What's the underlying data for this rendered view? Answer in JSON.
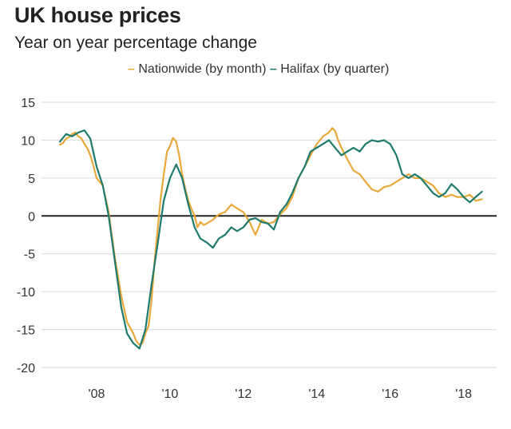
{
  "chart_data": {
    "type": "line",
    "title": "UK house prices",
    "subtitle": "Year on year percentage change",
    "legend": [
      {
        "name": "Nationwide (by month)",
        "color": "#e8a93a"
      },
      {
        "name": "Halifax (by quarter)",
        "color": "#1f7a6e"
      }
    ],
    "ylim": [
      -20,
      15
    ],
    "yticks": [
      15,
      10,
      5,
      0,
      -5,
      -10,
      -15,
      -20
    ],
    "xlim": [
      2006.5,
      2018.9
    ],
    "xticks": [
      {
        "value": 2008,
        "label": "'08"
      },
      {
        "value": 2010,
        "label": "'10"
      },
      {
        "value": 2012,
        "label": "'12"
      },
      {
        "value": 2014,
        "label": "'14"
      },
      {
        "value": 2016,
        "label": "'16"
      },
      {
        "value": 2018,
        "label": "'18"
      }
    ],
    "grid": true,
    "series": [
      {
        "name": "Nationwide (by month)",
        "color": "#e8a93a",
        "x": [
          2007.0,
          2007.08,
          2007.17,
          2007.25,
          2007.33,
          2007.42,
          2007.5,
          2007.58,
          2007.67,
          2007.75,
          2007.83,
          2007.92,
          2008.0,
          2008.17,
          2008.33,
          2008.5,
          2008.67,
          2008.83,
          2009.0,
          2009.08,
          2009.17,
          2009.25,
          2009.33,
          2009.42,
          2009.5,
          2009.58,
          2009.67,
          2009.75,
          2009.83,
          2009.92,
          2010.0,
          2010.08,
          2010.17,
          2010.25,
          2010.33,
          2010.42,
          2010.5,
          2010.58,
          2010.67,
          2010.75,
          2010.83,
          2010.92,
          2011.0,
          2011.17,
          2011.33,
          2011.5,
          2011.67,
          2011.83,
          2012.0,
          2012.17,
          2012.33,
          2012.5,
          2012.67,
          2012.83,
          2013.0,
          2013.17,
          2013.33,
          2013.5,
          2013.67,
          2013.83,
          2014.0,
          2014.17,
          2014.33,
          2014.42,
          2014.5,
          2014.58,
          2014.67,
          2014.83,
          2015.0,
          2015.17,
          2015.33,
          2015.5,
          2015.67,
          2015.83,
          2016.0,
          2016.17,
          2016.33,
          2016.5,
          2016.67,
          2016.83,
          2017.0,
          2017.17,
          2017.33,
          2017.5,
          2017.67,
          2017.83,
          2018.0,
          2018.17,
          2018.33,
          2018.5
        ],
        "values": [
          9.4,
          9.6,
          10.2,
          10.4,
          10.8,
          11.0,
          10.5,
          10.3,
          9.5,
          8.9,
          8.0,
          6.5,
          5.0,
          4.0,
          0.5,
          -5.5,
          -10.5,
          -14.0,
          -15.5,
          -16.5,
          -17.0,
          -16.8,
          -15.5,
          -14.5,
          -11.0,
          -6.0,
          -1.5,
          2.5,
          5.5,
          8.5,
          9.2,
          10.3,
          9.8,
          8.0,
          5.5,
          3.5,
          2.0,
          1.0,
          0.0,
          -1.5,
          -0.8,
          -1.2,
          -1.0,
          -0.5,
          0.2,
          0.5,
          1.5,
          1.0,
          0.5,
          -0.8,
          -2.5,
          -0.5,
          -1.0,
          -0.8,
          0.2,
          1.0,
          2.5,
          5.0,
          6.5,
          8.0,
          9.5,
          10.5,
          11.0,
          11.6,
          11.2,
          10.0,
          9.0,
          7.5,
          6.0,
          5.5,
          4.5,
          3.5,
          3.2,
          3.8,
          4.0,
          4.5,
          5.0,
          5.5,
          5.0,
          5.0,
          4.5,
          4.0,
          3.0,
          2.5,
          2.8,
          2.5,
          2.5,
          2.8,
          2.0,
          2.2
        ]
      },
      {
        "name": "Halifax (by quarter)",
        "color": "#1f7a6e",
        "x": [
          2007.0,
          2007.17,
          2007.33,
          2007.5,
          2007.67,
          2007.83,
          2008.0,
          2008.17,
          2008.33,
          2008.5,
          2008.67,
          2008.83,
          2009.0,
          2009.17,
          2009.33,
          2009.5,
          2009.67,
          2009.83,
          2010.0,
          2010.17,
          2010.33,
          2010.5,
          2010.67,
          2010.83,
          2011.0,
          2011.17,
          2011.33,
          2011.5,
          2011.67,
          2011.83,
          2012.0,
          2012.17,
          2012.33,
          2012.5,
          2012.67,
          2012.83,
          2013.0,
          2013.17,
          2013.33,
          2013.5,
          2013.67,
          2013.83,
          2014.0,
          2014.17,
          2014.33,
          2014.5,
          2014.67,
          2014.83,
          2015.0,
          2015.17,
          2015.33,
          2015.5,
          2015.67,
          2015.83,
          2016.0,
          2016.17,
          2016.33,
          2016.5,
          2016.67,
          2016.83,
          2017.0,
          2017.17,
          2017.33,
          2017.5,
          2017.67,
          2017.83,
          2018.0,
          2018.17,
          2018.33,
          2018.5
        ],
        "values": [
          9.8,
          10.8,
          10.5,
          11.0,
          11.3,
          10.2,
          6.5,
          4.0,
          0.0,
          -6.0,
          -12.0,
          -15.5,
          -16.8,
          -17.5,
          -15.0,
          -9.0,
          -3.5,
          2.0,
          5.0,
          6.8,
          5.0,
          1.5,
          -1.5,
          -3.0,
          -3.5,
          -4.2,
          -3.0,
          -2.5,
          -1.5,
          -2.0,
          -1.5,
          -0.5,
          -0.3,
          -0.8,
          -1.0,
          -1.8,
          0.5,
          1.5,
          3.0,
          5.0,
          6.5,
          8.5,
          9.0,
          9.5,
          10.0,
          9.0,
          8.0,
          8.5,
          9.0,
          8.5,
          9.5,
          10.0,
          9.8,
          10.0,
          9.5,
          8.0,
          5.5,
          5.0,
          5.5,
          5.0,
          4.0,
          3.0,
          2.5,
          3.0,
          4.2,
          3.5,
          2.5,
          1.8,
          2.5,
          3.2
        ]
      }
    ]
  }
}
